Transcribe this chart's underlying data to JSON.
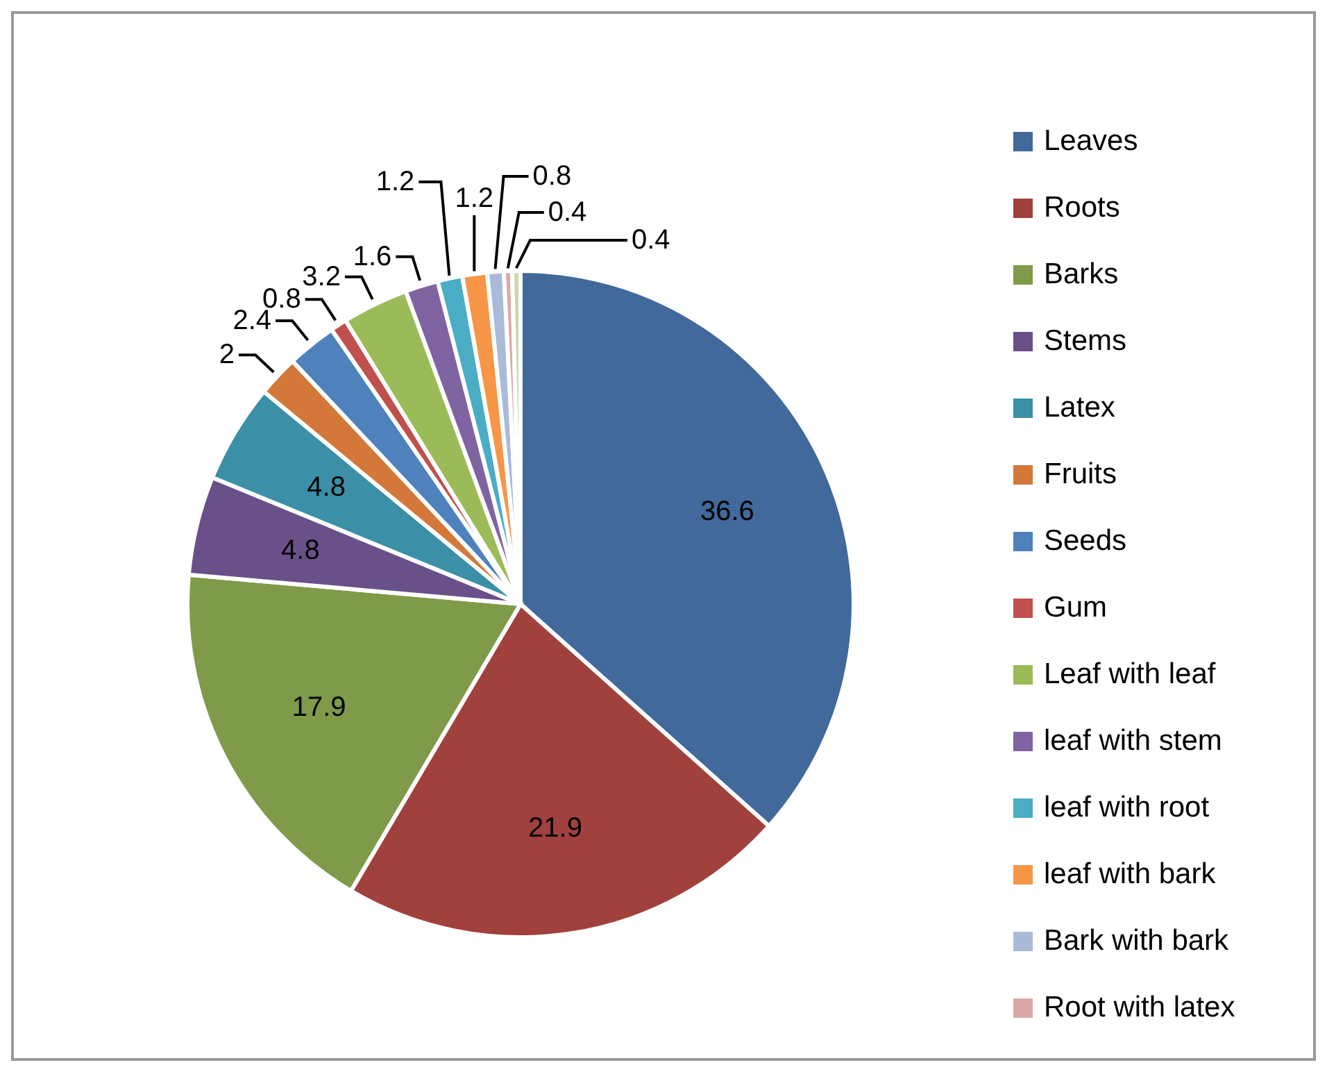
{
  "chart_data": {
    "type": "pie",
    "categories": [
      "Leaves",
      "Roots",
      "Barks",
      "Stems",
      "Latex",
      "Fruits",
      "Seeds",
      "Gum",
      "Leaf with leaf",
      "leaf with stem",
      "leaf with root",
      "leaf with bark",
      "Bark with bark",
      "Root with latex",
      null
    ],
    "values": [
      36.6,
      21.9,
      17.9,
      4.8,
      4.8,
      2,
      2.4,
      0.8,
      3.2,
      1.6,
      1.2,
      1.2,
      0.8,
      0.4,
      0.4
    ],
    "colors": [
      "#41699b",
      "#a0413e",
      "#7f9a48",
      "#6a5089",
      "#3b8fa6",
      "#d3783a",
      "#4f81bd",
      "#c0504d",
      "#9bbb59",
      "#8064a2",
      "#4bacc6",
      "#f79646",
      "#a9bbd9",
      "#dca8a7",
      "#c6d9a6"
    ],
    "data_labels": true,
    "legend": "right"
  }
}
